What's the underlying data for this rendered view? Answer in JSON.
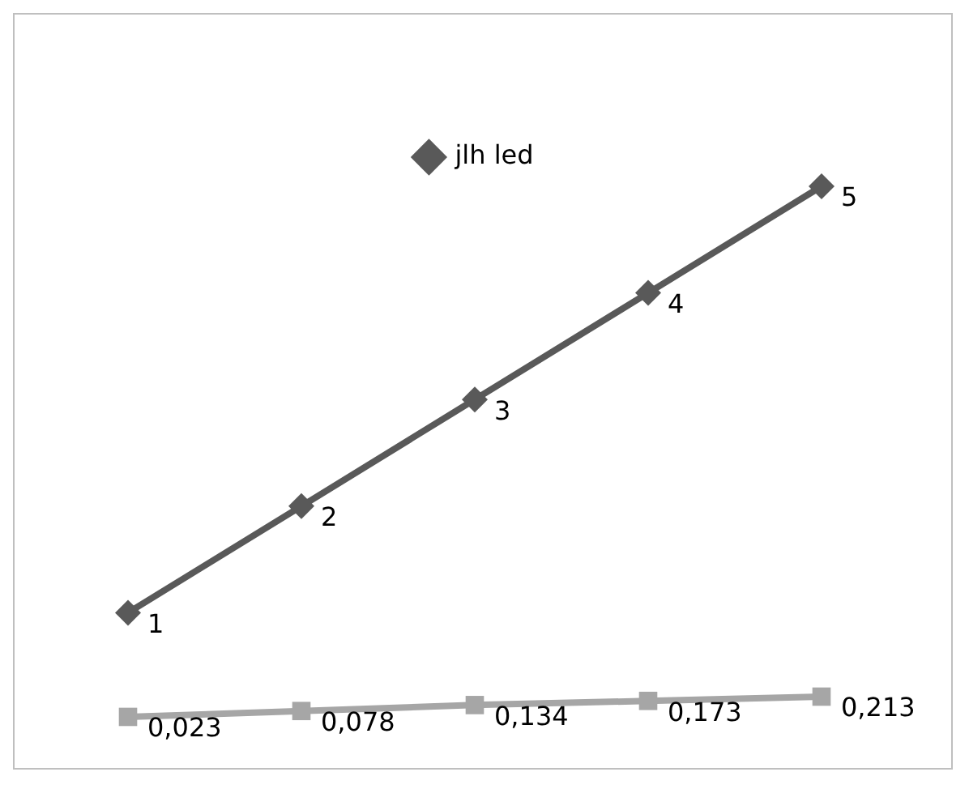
{
  "chart_data": {
    "type": "line",
    "categories": [
      null,
      null,
      null,
      null,
      null
    ],
    "tick_labels": false,
    "legend": "top",
    "series": [
      {
        "name": "jlh led",
        "color": "#595959",
        "marker": "diamond",
        "values": [
          1,
          2,
          3,
          4,
          5
        ],
        "value_labels": [
          "1",
          "2",
          "3",
          "4",
          "5"
        ]
      },
      {
        "color": "#a6a6a6",
        "marker": "square",
        "values": [
          0.023,
          0.078,
          0.134,
          0.173,
          0.213
        ],
        "value_labels": [
          "0,023",
          "0,078",
          "0,134",
          "0,173",
          "0,213"
        ]
      }
    ]
  }
}
